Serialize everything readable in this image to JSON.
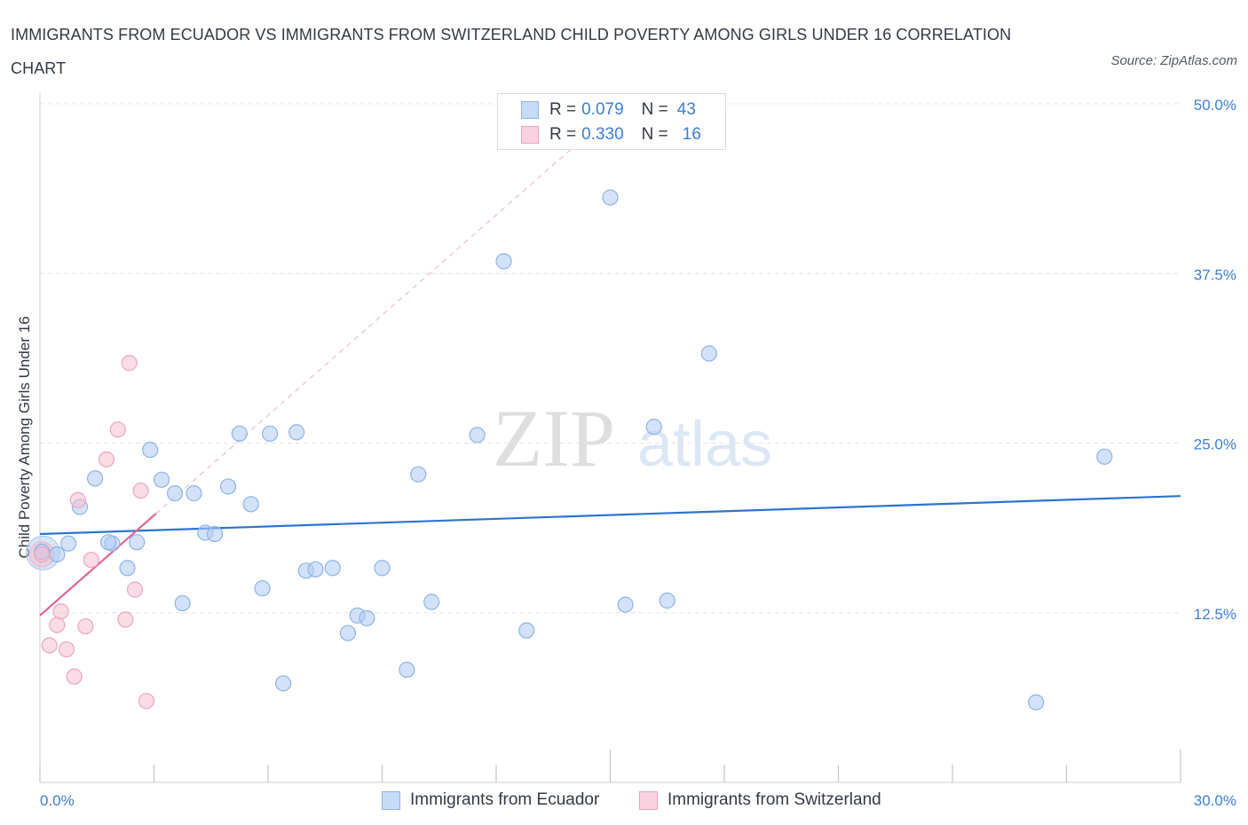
{
  "title": "IMMIGRANTS FROM ECUADOR VS IMMIGRANTS FROM SWITZERLAND CHILD POVERTY AMONG GIRLS UNDER 16 CORRELATION CHART",
  "source": "Source: ZipAtlas.com",
  "watermark": {
    "zip": "ZIP",
    "atlas": "atlas"
  },
  "legend": {
    "ecuador": {
      "r_label": "R =",
      "r_value": "0.079",
      "n_label": "N =",
      "n_value": "43"
    },
    "switzerland": {
      "r_label": "R =",
      "r_value": "0.330",
      "n_label": "N =",
      "n_value": "16"
    }
  },
  "chart_data": {
    "type": "scatter",
    "title": "IMMIGRANTS FROM ECUADOR VS IMMIGRANTS FROM SWITZERLAND CHILD POVERTY AMONG GIRLS UNDER 16 CORRELATION CHART",
    "xlabel": "",
    "ylabel": "Child Poverty Among Girls Under 16",
    "xlim": [
      0,
      30
    ],
    "ylim": [
      0,
      50
    ],
    "x_tick_labels": [
      "0.0%",
      "30.0%"
    ],
    "y_ticks": [
      12.5,
      25.0,
      37.5,
      50.0
    ],
    "y_tick_labels": [
      "12.5%",
      "25.0%",
      "37.5%",
      "50.0%"
    ],
    "colors": {
      "ecuador": "#aecbf2",
      "ecuador_line": "#2e73d0",
      "switzerland": "#f6bfd0",
      "switzerland_line": "#e2648f"
    },
    "series": [
      {
        "name": "Immigrants from Ecuador",
        "r": 0.079,
        "n": 43,
        "trend": {
          "x": [
            0,
            30
          ],
          "y": [
            18.3,
            21.1
          ]
        },
        "points": [
          [
            0.05,
            17.0
          ],
          [
            0.45,
            16.8
          ],
          [
            0.75,
            17.6
          ],
          [
            1.05,
            20.3
          ],
          [
            1.45,
            22.4
          ],
          [
            1.9,
            17.6
          ],
          [
            1.8,
            17.7
          ],
          [
            2.3,
            15.8
          ],
          [
            2.55,
            17.7
          ],
          [
            2.9,
            24.5
          ],
          [
            3.2,
            22.3
          ],
          [
            3.55,
            21.3
          ],
          [
            3.75,
            13.2
          ],
          [
            4.05,
            21.3
          ],
          [
            4.35,
            18.4
          ],
          [
            4.6,
            18.3
          ],
          [
            4.95,
            21.8
          ],
          [
            5.25,
            25.7
          ],
          [
            5.55,
            20.5
          ],
          [
            5.85,
            14.3
          ],
          [
            6.05,
            25.7
          ],
          [
            6.4,
            7.3
          ],
          [
            6.75,
            25.8
          ],
          [
            7.0,
            15.6
          ],
          [
            7.25,
            15.7
          ],
          [
            7.7,
            15.8
          ],
          [
            8.1,
            11.0
          ],
          [
            8.35,
            12.3
          ],
          [
            8.6,
            12.1
          ],
          [
            9.0,
            15.8
          ],
          [
            9.65,
            8.3
          ],
          [
            9.95,
            22.7
          ],
          [
            10.3,
            13.3
          ],
          [
            11.5,
            25.6
          ],
          [
            12.2,
            38.4
          ],
          [
            12.8,
            11.2
          ],
          [
            15.0,
            43.1
          ],
          [
            15.4,
            13.1
          ],
          [
            16.15,
            26.2
          ],
          [
            16.5,
            13.4
          ],
          [
            17.6,
            31.6
          ],
          [
            26.2,
            5.9
          ],
          [
            28.0,
            24.0
          ]
        ]
      },
      {
        "name": "Immigrants from Switzerland",
        "r": 0.33,
        "n": 16,
        "trend": {
          "x": [
            0,
            3.05
          ],
          "y": [
            12.3,
            19.8
          ]
        },
        "points": [
          [
            0.05,
            16.8
          ],
          [
            0.25,
            10.1
          ],
          [
            0.45,
            11.6
          ],
          [
            0.55,
            12.6
          ],
          [
            0.7,
            9.8
          ],
          [
            0.9,
            7.8
          ],
          [
            1.0,
            20.8
          ],
          [
            1.2,
            11.5
          ],
          [
            1.35,
            16.4
          ],
          [
            1.75,
            23.8
          ],
          [
            2.05,
            26.0
          ],
          [
            2.25,
            12.0
          ],
          [
            2.35,
            30.9
          ],
          [
            2.5,
            14.2
          ],
          [
            2.65,
            21.5
          ],
          [
            2.8,
            6.0
          ]
        ]
      }
    ]
  }
}
